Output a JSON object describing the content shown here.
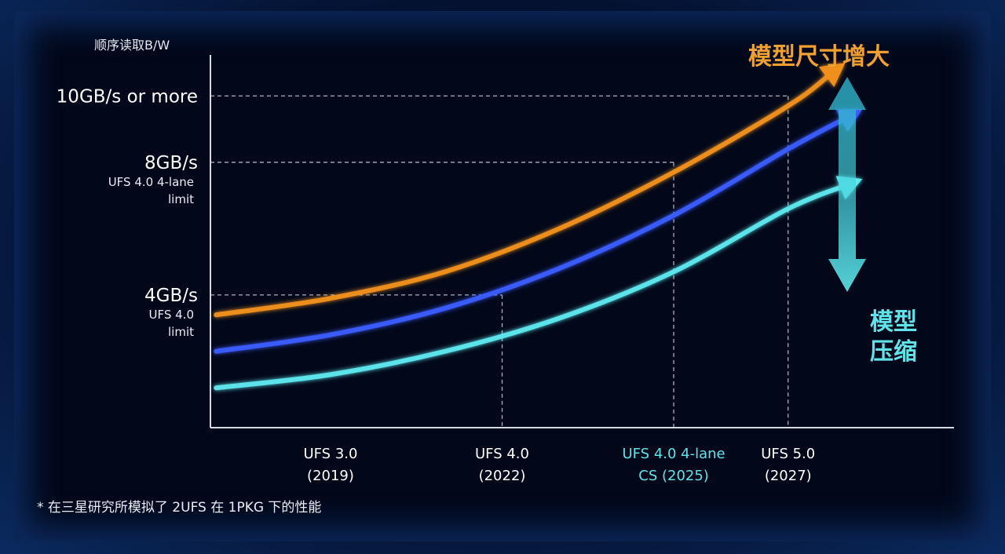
{
  "chart_data": {
    "type": "line",
    "ylabel": "顺序读取B/W",
    "y_ticks": [
      {
        "value": 10,
        "label": "10GB/s or more",
        "note": []
      },
      {
        "value": 8,
        "label": "8GB/s",
        "note": [
          "UFS 4.0 4-lane",
          "limit"
        ]
      },
      {
        "value": 4,
        "label": "4GB/s",
        "note": [
          "UFS 4.0",
          "limit"
        ]
      }
    ],
    "ylim": [
      0,
      11
    ],
    "x_ticks": [
      {
        "x": 2019,
        "label": [
          "UFS 3.0",
          "(2019)"
        ],
        "color": "#ffffff"
      },
      {
        "x": 2022,
        "label": [
          "UFS 4.0",
          "(2022)"
        ],
        "color": "#ffffff"
      },
      {
        "x": 2025,
        "label": [
          "UFS 4.0 4-lane",
          "CS (2025)"
        ],
        "color": "#5fe3e9"
      },
      {
        "x": 2027,
        "label": [
          "UFS 5.0",
          "(2027)"
        ],
        "color": "#ffffff"
      }
    ],
    "xlim": [
      2016.9,
      2029.9
    ],
    "reference_lines": [
      {
        "x": 2022,
        "y": 4
      },
      {
        "x": 2025,
        "y": 8
      },
      {
        "x": 2027,
        "y": 10
      }
    ],
    "series": [
      {
        "color": "#f0901c",
        "x": [
          2017,
          2019,
          2021,
          2023,
          2025,
          2027,
          2028
        ],
        "y": [
          3.4,
          3.9,
          4.7,
          6.0,
          7.7,
          9.7,
          11.0
        ]
      },
      {
        "color": "#3b5cff",
        "x": [
          2017,
          2019,
          2021,
          2023,
          2025,
          2027,
          2028.3
        ],
        "y": [
          2.3,
          2.8,
          3.6,
          4.8,
          6.4,
          8.4,
          9.6
        ]
      },
      {
        "color": "#5ee8ee",
        "x": [
          2017,
          2019,
          2021,
          2023,
          2025,
          2027,
          2028.3
        ],
        "y": [
          1.2,
          1.6,
          2.3,
          3.3,
          4.7,
          6.6,
          7.5
        ]
      }
    ],
    "annotations": {
      "top": {
        "text": "模型尺寸增大",
        "color": "#f0a030"
      },
      "bottom": {
        "lines": [
          "模型",
          "压缩"
        ],
        "color": "#5fe3e9"
      }
    },
    "footnote": "* 在三星研究所模拟了 2UFS 在 1PKG 下的性能"
  }
}
